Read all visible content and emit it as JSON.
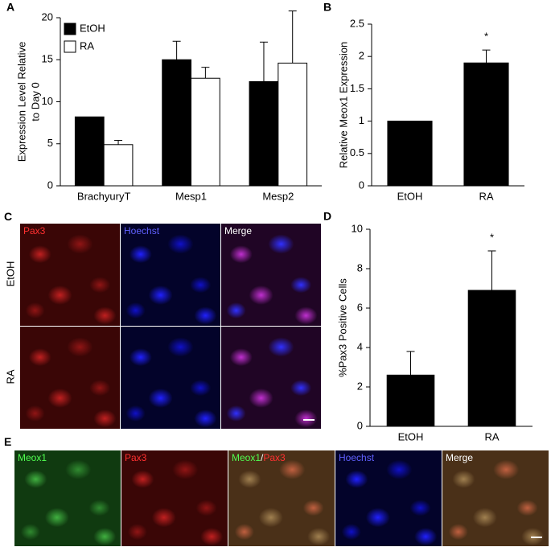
{
  "chart_data": [
    {
      "panel": "A",
      "type": "bar",
      "ylabel": [
        "Expression Level Relative",
        "to Day 0"
      ],
      "categories": [
        "BrachyuryT",
        "Mesp1",
        "Mesp2"
      ],
      "series": [
        {
          "name": "EtOH",
          "color": "#000000",
          "values": [
            8.2,
            15,
            12.4
          ],
          "errors": [
            null,
            2.2,
            4.7
          ]
        },
        {
          "name": "RA",
          "color": "#ffffff",
          "values": [
            4.9,
            12.8,
            14.6
          ],
          "errors": [
            0.5,
            1.3,
            6.2
          ]
        }
      ],
      "ylim": [
        0,
        20
      ],
      "yticks": [
        0,
        5,
        10,
        15,
        20
      ],
      "legend": "upper left"
    },
    {
      "panel": "B",
      "type": "bar",
      "ylabel": [
        "Relative Meox1 Expression"
      ],
      "categories": [
        "EtOH",
        "RA"
      ],
      "color": "#000000",
      "values": [
        1,
        1.9
      ],
      "errors": [
        null,
        0.2
      ],
      "annotation": "*",
      "ylim": [
        0,
        2.5
      ],
      "yticks": [
        0,
        0.5,
        1,
        1.5,
        2,
        2.5
      ]
    },
    {
      "panel": "D",
      "type": "bar",
      "ylabel": [
        "%Pax3 Positive Cells"
      ],
      "categories": [
        "EtOH",
        "RA"
      ],
      "color": "#000000",
      "values": [
        2.6,
        6.9
      ],
      "errors": [
        1.2,
        2.0
      ],
      "annotation": "*",
      "ylim": [
        0,
        10
      ],
      "yticks": [
        0,
        2,
        4,
        6,
        8,
        10
      ]
    }
  ],
  "images": [
    {
      "panel": "C",
      "columns": [
        "Pax3",
        "Hoechst",
        "Merge"
      ],
      "rows": [
        "EtOH",
        "RA"
      ]
    },
    {
      "panel": "E",
      "columns": [
        "Meox1",
        "Pax3",
        [
          "Meox1",
          "/",
          "Pax3"
        ],
        "Hoechst",
        "Merge"
      ]
    }
  ]
}
